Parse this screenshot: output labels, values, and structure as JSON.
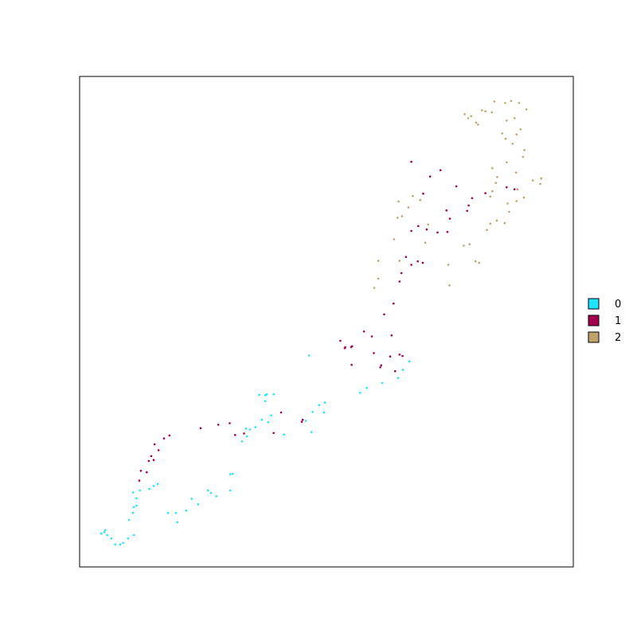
{
  "chart_data": {
    "type": "scatter",
    "title": "",
    "xlabel": "",
    "ylabel": "",
    "xlim": [
      0,
      100
    ],
    "ylim": [
      0,
      100
    ],
    "grid": false,
    "legend_placement": "right",
    "series": [
      {
        "name": "0",
        "color": "#1ee3ff",
        "points": [
          [
            4.4,
            6.8
          ],
          [
            5.0,
            7.1
          ],
          [
            5.2,
            7.5
          ],
          [
            5.6,
            6.5
          ],
          [
            6.4,
            5.8
          ],
          [
            7.2,
            4.6
          ],
          [
            8.2,
            4.6
          ],
          [
            8.8,
            4.9
          ],
          [
            9.8,
            5.8
          ],
          [
            11.0,
            6.5
          ],
          [
            10.0,
            9.6
          ],
          [
            10.8,
            11.0
          ],
          [
            11.0,
            12.2
          ],
          [
            11.5,
            12.5
          ],
          [
            11.5,
            14.0
          ],
          [
            10.8,
            15.2
          ],
          [
            12.2,
            15.6
          ],
          [
            14.1,
            15.9
          ],
          [
            15.0,
            16.5
          ],
          [
            15.8,
            16.9
          ],
          [
            19.8,
            9.1
          ],
          [
            17.9,
            11.0
          ],
          [
            19.5,
            11.0
          ],
          [
            21.6,
            11.5
          ],
          [
            22.7,
            13.9
          ],
          [
            24.0,
            12.8
          ],
          [
            26.0,
            15.6
          ],
          [
            26.6,
            15.1
          ],
          [
            27.7,
            14.4
          ],
          [
            30.5,
            15.6
          ],
          [
            30.5,
            18.9
          ],
          [
            31.0,
            19.0
          ],
          [
            32.9,
            25.6
          ],
          [
            33.9,
            26.6
          ],
          [
            33.7,
            28.2
          ],
          [
            34.5,
            28.0
          ],
          [
            35.6,
            28.5
          ],
          [
            36.9,
            30.0
          ],
          [
            38.2,
            29.5
          ],
          [
            38.8,
            30.9
          ],
          [
            37.6,
            33.8
          ],
          [
            37.6,
            35.0
          ],
          [
            37.9,
            35.2
          ],
          [
            39.3,
            35.2
          ],
          [
            36.4,
            35.1
          ],
          [
            41.4,
            27.0
          ],
          [
            47.0,
            27.5
          ],
          [
            45.8,
            29.8
          ],
          [
            47.2,
            31.6
          ],
          [
            48.5,
            33.0
          ],
          [
            49.5,
            31.5
          ],
          [
            49.7,
            33.5
          ],
          [
            56.8,
            35.5
          ],
          [
            58.2,
            36.5
          ],
          [
            61.3,
            37.5
          ],
          [
            64.5,
            38.5
          ],
          [
            65.5,
            40.2
          ],
          [
            66.8,
            41.9
          ],
          [
            46.5,
            43.1
          ]
        ]
      },
      {
        "name": "1",
        "color": "#a3004e",
        "points": [
          [
            12.1,
            17.6
          ],
          [
            12.4,
            19.6
          ],
          [
            13.6,
            19.3
          ],
          [
            14.0,
            21.6
          ],
          [
            14.5,
            22.6
          ],
          [
            15.0,
            21.8
          ],
          [
            15.2,
            25.0
          ],
          [
            16.0,
            23.8
          ],
          [
            17.1,
            26.2
          ],
          [
            18.2,
            26.8
          ],
          [
            24.5,
            28.3
          ],
          [
            28.1,
            29.0
          ],
          [
            30.4,
            29.3
          ],
          [
            31.5,
            26.9
          ],
          [
            33.3,
            27.2
          ],
          [
            39.3,
            27.3
          ],
          [
            40.8,
            31.5
          ],
          [
            45.0,
            29.6
          ],
          [
            45.2,
            30.0
          ],
          [
            52.8,
            46.1
          ],
          [
            53.7,
            44.6
          ],
          [
            55.1,
            41.2
          ],
          [
            53.8,
            44.8
          ],
          [
            55.0,
            44.8
          ],
          [
            55.2,
            45.0
          ],
          [
            57.6,
            48.0
          ],
          [
            59.2,
            47.0
          ],
          [
            60.9,
            40.7
          ],
          [
            59.6,
            43.6
          ],
          [
            61.1,
            41.1
          ],
          [
            62.9,
            42.9
          ],
          [
            63.9,
            39.9
          ],
          [
            64.8,
            43.3
          ],
          [
            65.4,
            43.0
          ],
          [
            63.2,
            47.2
          ],
          [
            61.7,
            51.5
          ],
          [
            63.6,
            53.7
          ],
          [
            64.8,
            58.2
          ],
          [
            65.2,
            59.9
          ],
          [
            67.2,
            61.6
          ],
          [
            68.5,
            62.3
          ],
          [
            69.5,
            62.0
          ],
          [
            66.1,
            63.2
          ],
          [
            67.2,
            68.5
          ],
          [
            68.6,
            69.5
          ],
          [
            70.3,
            68.8
          ],
          [
            72.5,
            68.2
          ],
          [
            74.5,
            68.3
          ],
          [
            69.6,
            76.1
          ],
          [
            74.3,
            72.7
          ],
          [
            75.0,
            71.0
          ],
          [
            67.2,
            82.6
          ],
          [
            71.0,
            79.6
          ],
          [
            73.1,
            80.9
          ],
          [
            78.5,
            72.6
          ],
          [
            78.8,
            73.7
          ],
          [
            76.3,
            77.6
          ],
          [
            79.5,
            75.2
          ],
          [
            82.2,
            76.2
          ],
          [
            86.5,
            77.4
          ],
          [
            88.1,
            77.0
          ]
        ]
      },
      {
        "name": "2",
        "color": "#c0a36b",
        "points": [
          [
            59.7,
            56.9
          ],
          [
            60.5,
            58.8
          ],
          [
            60.5,
            62.4
          ],
          [
            64.8,
            62.4
          ],
          [
            63.7,
            66.8
          ],
          [
            64.4,
            71.2
          ],
          [
            64.6,
            74.5
          ],
          [
            65.3,
            71.5
          ],
          [
            66.6,
            73.3
          ],
          [
            67.5,
            75.6
          ],
          [
            69.0,
            74.8
          ],
          [
            70.0,
            66.1
          ],
          [
            70.6,
            69.8
          ],
          [
            74.7,
            61.6
          ],
          [
            74.9,
            57.4
          ],
          [
            80.9,
            62.0
          ],
          [
            80.2,
            62.3
          ],
          [
            77.8,
            65.5
          ],
          [
            79.0,
            65.8
          ],
          [
            82.5,
            68.7
          ],
          [
            83.2,
            70.0
          ],
          [
            84.5,
            70.6
          ],
          [
            86.1,
            70.1
          ],
          [
            87.0,
            72.4
          ],
          [
            86.7,
            74.1
          ],
          [
            88.5,
            74.6
          ],
          [
            90.0,
            75.3
          ],
          [
            91.8,
            78.8
          ],
          [
            93.5,
            79.2
          ],
          [
            93.3,
            78.1
          ],
          [
            88.7,
            77.0
          ],
          [
            83.2,
            75.5
          ],
          [
            83.6,
            76.6
          ],
          [
            84.3,
            78.3
          ],
          [
            84.6,
            79.5
          ],
          [
            83.6,
            81.3
          ],
          [
            86.5,
            82.5
          ],
          [
            88.4,
            80.4
          ],
          [
            89.8,
            83.6
          ],
          [
            90.1,
            85.0
          ],
          [
            87.7,
            86.3
          ],
          [
            86.3,
            87.3
          ],
          [
            85.6,
            88.4
          ],
          [
            88.5,
            88.2
          ],
          [
            89.3,
            89.2
          ],
          [
            88.1,
            91.5
          ],
          [
            86.5,
            91.0
          ],
          [
            83.5,
            92.7
          ],
          [
            82.2,
            92.9
          ],
          [
            81.5,
            93.1
          ],
          [
            80.7,
            90.2
          ],
          [
            80.3,
            90.6
          ],
          [
            79.3,
            91.9
          ],
          [
            78.7,
            91.5
          ],
          [
            78.0,
            92.3
          ],
          [
            84.0,
            94.9
          ],
          [
            86.2,
            94.6
          ],
          [
            87.4,
            95.0
          ],
          [
            89.0,
            94.6
          ],
          [
            90.5,
            93.3
          ]
        ]
      }
    ]
  }
}
